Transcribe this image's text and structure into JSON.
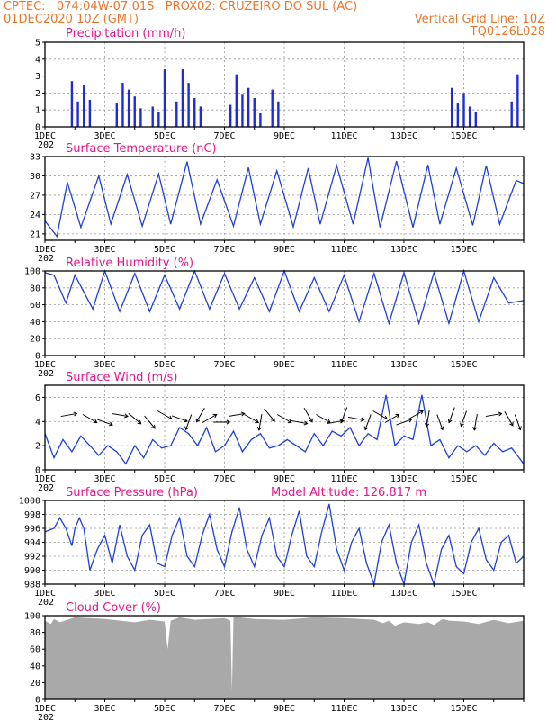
{
  "header": {
    "left_line1": "CPTEC:   074:04W-07:01S   PROX02: CRUZEIRO DO SUL (AC)",
    "left_line2": "01DEC2020 10Z (GMT)",
    "right_line2": "Vertical Grid Line: 10Z",
    "right_line3": "TQ0126L028"
  },
  "colors": {
    "header": "#e8762b",
    "title": "#e0188c",
    "line": "#1f3fd6",
    "bar": "#1f2ad8",
    "cloud": "#a9a9a9"
  },
  "chart_data": [
    {
      "id": "precip",
      "type": "bar",
      "title": "Precipitation (mm/h)",
      "ylim": [
        0,
        5
      ],
      "yticks": [
        0,
        1,
        2,
        3,
        4,
        5
      ],
      "grid": true,
      "x": [
        0.9,
        1.1,
        1.3,
        1.5,
        2.4,
        2.6,
        2.8,
        3.0,
        3.2,
        3.6,
        3.8,
        4.0,
        4.4,
        4.6,
        4.8,
        5.0,
        5.2,
        6.2,
        6.4,
        6.6,
        6.8,
        7.0,
        7.2,
        7.6,
        7.8,
        13.6,
        13.8,
        14.0,
        14.2,
        14.4,
        15.6,
        15.8
      ],
      "values": [
        2.7,
        1.5,
        2.5,
        1.6,
        1.4,
        2.6,
        2.2,
        1.8,
        1.1,
        1.2,
        0.9,
        3.4,
        1.5,
        3.4,
        2.6,
        1.7,
        1.2,
        1.3,
        3.1,
        1.9,
        2.3,
        1.7,
        0.8,
        2.2,
        1.5,
        2.3,
        1.4,
        2.0,
        1.2,
        0.9,
        1.5,
        3.1
      ]
    },
    {
      "id": "temperature",
      "type": "line",
      "title": "Surface Temperature (nC)",
      "ylim": [
        20,
        33
      ],
      "yticks": [
        21,
        24,
        27,
        30,
        33
      ],
      "grid": true,
      "x": [
        0,
        0.4,
        0.75,
        1.2,
        1.8,
        2.2,
        2.75,
        3.25,
        3.8,
        4.2,
        4.75,
        5.2,
        5.75,
        6.3,
        6.8,
        7.2,
        7.75,
        8.3,
        8.8,
        9.2,
        9.75,
        10.3,
        10.8,
        11.2,
        11.75,
        12.3,
        12.8,
        13.2,
        13.75,
        14.3,
        14.75,
        15.2,
        15.75,
        16
      ],
      "values": [
        23,
        20.6,
        29,
        22,
        30,
        22.5,
        30.2,
        22.2,
        30.3,
        22.5,
        32.2,
        22.5,
        29.4,
        22.2,
        31.3,
        22.5,
        30.8,
        22.1,
        31.2,
        22.5,
        31.6,
        22.5,
        32.8,
        22,
        32.3,
        22,
        31.7,
        22.5,
        31.2,
        22.3,
        31.6,
        22.5,
        29.3,
        28.8
      ]
    },
    {
      "id": "humidity",
      "type": "line",
      "title": "Relative Humidity (%)",
      "ylim": [
        0,
        100
      ],
      "yticks": [
        0,
        20,
        40,
        60,
        80,
        100
      ],
      "grid": true,
      "x": [
        0,
        0.3,
        0.7,
        1.0,
        1.6,
        2.0,
        2.5,
        3.0,
        3.5,
        4.0,
        4.5,
        5.0,
        5.5,
        6.0,
        6.5,
        7.0,
        7.5,
        8.0,
        8.5,
        9.0,
        9.5,
        10.0,
        10.5,
        11.0,
        11.5,
        12.0,
        12.5,
        13.0,
        13.5,
        14.0,
        14.5,
        15.0,
        15.5,
        16
      ],
      "values": [
        98,
        95,
        62,
        95,
        55,
        100,
        52,
        97,
        52,
        95,
        55,
        100,
        55,
        97,
        55,
        92,
        52,
        100,
        52,
        92,
        52,
        95,
        40,
        97,
        38,
        98,
        38,
        98,
        38,
        100,
        40,
        92,
        62,
        65
      ]
    },
    {
      "id": "wind",
      "type": "line",
      "title": "Surface Wind (m/s)",
      "ylim": [
        0,
        7
      ],
      "yticks": [
        0,
        2,
        4,
        6
      ],
      "grid": true,
      "x": [
        0,
        0.3,
        0.6,
        0.9,
        1.2,
        1.5,
        1.8,
        2.1,
        2.4,
        2.7,
        3.0,
        3.3,
        3.6,
        3.9,
        4.2,
        4.5,
        4.8,
        5.1,
        5.4,
        5.7,
        6.0,
        6.3,
        6.6,
        6.9,
        7.2,
        7.5,
        7.8,
        8.1,
        8.4,
        8.7,
        9.0,
        9.3,
        9.6,
        9.9,
        10.2,
        10.5,
        10.8,
        11.1,
        11.4,
        11.7,
        12.0,
        12.3,
        12.6,
        12.9,
        13.2,
        13.5,
        13.8,
        14.1,
        14.4,
        14.7,
        15.0,
        15.3,
        15.6,
        16
      ],
      "values": [
        3.0,
        1.0,
        2.5,
        1.5,
        2.8,
        2.0,
        1.2,
        2.0,
        1.5,
        0.5,
        2.0,
        1.0,
        2.5,
        1.8,
        2.0,
        3.5,
        3.0,
        2.0,
        3.5,
        1.5,
        2.0,
        3.2,
        1.5,
        2.5,
        3.0,
        1.8,
        2.0,
        2.5,
        2.0,
        1.5,
        3.0,
        2.0,
        3.2,
        2.8,
        3.5,
        2.0,
        3.0,
        2.5,
        6.2,
        2.0,
        2.8,
        2.5,
        6.2,
        2.0,
        2.5,
        1.0,
        2.0,
        1.5,
        2.0,
        1.2,
        2.2,
        1.5,
        1.8,
        0.5
      ],
      "arrows": [
        {
          "x": 0.8,
          "dir": 80
        },
        {
          "x": 1.5,
          "dir": 120
        },
        {
          "x": 2.0,
          "dir": 110
        },
        {
          "x": 2.5,
          "dir": 100
        },
        {
          "x": 3.0,
          "dir": 130
        },
        {
          "x": 3.5,
          "dir": 140
        },
        {
          "x": 4.0,
          "dir": 120
        },
        {
          "x": 4.5,
          "dir": 110
        },
        {
          "x": 4.8,
          "dir": 200
        },
        {
          "x": 5.2,
          "dir": 210
        },
        {
          "x": 5.5,
          "dir": 60
        },
        {
          "x": 5.9,
          "dir": 90
        },
        {
          "x": 6.4,
          "dir": 80
        },
        {
          "x": 6.9,
          "dir": 120
        },
        {
          "x": 7.2,
          "dir": 190
        },
        {
          "x": 7.5,
          "dir": 140
        },
        {
          "x": 8.0,
          "dir": 120
        },
        {
          "x": 8.5,
          "dir": 100
        },
        {
          "x": 8.8,
          "dir": 150
        },
        {
          "x": 9.3,
          "dir": 120
        },
        {
          "x": 9.7,
          "dir": 80
        },
        {
          "x": 10.0,
          "dir": 200
        },
        {
          "x": 10.4,
          "dir": 100
        },
        {
          "x": 10.8,
          "dir": 200
        },
        {
          "x": 11.2,
          "dir": 120
        },
        {
          "x": 11.6,
          "dir": 60
        },
        {
          "x": 12.0,
          "dir": 70
        },
        {
          "x": 12.4,
          "dir": 60
        },
        {
          "x": 12.8,
          "dir": 190
        },
        {
          "x": 13.2,
          "dir": 160
        },
        {
          "x": 13.6,
          "dir": 200
        },
        {
          "x": 14.0,
          "dir": 200
        },
        {
          "x": 14.4,
          "dir": 190
        },
        {
          "x": 15.0,
          "dir": 80
        },
        {
          "x": 15.5,
          "dir": 150
        },
        {
          "x": 15.8,
          "dir": 160
        }
      ]
    },
    {
      "id": "pressure",
      "type": "line",
      "title": "Surface Pressure (hPa)",
      "extra_label": "Model Altitude: 126.817  m",
      "ylim": [
        988,
        1000
      ],
      "yticks": [
        988,
        990,
        992,
        994,
        996,
        998,
        1000
      ],
      "grid": true,
      "x": [
        0,
        0.3,
        0.5,
        0.7,
        0.9,
        1.0,
        1.15,
        1.3,
        1.5,
        1.75,
        2.0,
        2.25,
        2.5,
        2.75,
        3.0,
        3.25,
        3.5,
        3.75,
        4.0,
        4.25,
        4.5,
        4.75,
        5.0,
        5.25,
        5.5,
        5.75,
        6.0,
        6.25,
        6.5,
        6.75,
        7.0,
        7.25,
        7.5,
        7.75,
        8.0,
        8.25,
        8.5,
        8.75,
        9.0,
        9.25,
        9.5,
        9.75,
        10.0,
        10.25,
        10.5,
        10.75,
        11.0,
        11.25,
        11.5,
        11.75,
        12.0,
        12.25,
        12.5,
        12.75,
        13.0,
        13.25,
        13.5,
        13.75,
        14.0,
        14.25,
        14.5,
        14.75,
        15.0,
        15.25,
        15.5,
        15.75,
        16
      ],
      "values": [
        995.5,
        996,
        997.5,
        996,
        993.5,
        996,
        997.5,
        996,
        990,
        993,
        995,
        991,
        996.5,
        992,
        990,
        995,
        996.5,
        991,
        990.5,
        995,
        997.5,
        992,
        990.5,
        995,
        998,
        993,
        990.5,
        995.5,
        999,
        993,
        990.5,
        995,
        997.5,
        992,
        990.5,
        995,
        998.5,
        992,
        990.5,
        995.5,
        999.5,
        993,
        990,
        994,
        996,
        991,
        988,
        994,
        996.5,
        991,
        988,
        994,
        996.5,
        991,
        988,
        993,
        995,
        990.5,
        989.5,
        994,
        996,
        991.5,
        990,
        994,
        995,
        991,
        992
      ]
    },
    {
      "id": "cloud",
      "type": "area",
      "title": "Cloud Cover (%)",
      "ylim": [
        0,
        100
      ],
      "yticks": [
        0,
        20,
        40,
        60,
        80,
        100
      ],
      "grid": false,
      "x": [
        0,
        0.2,
        0.3,
        0.5,
        1.0,
        2.0,
        3.0,
        3.5,
        4.0,
        4.1,
        4.2,
        4.5,
        5.0,
        6.0,
        6.2,
        6.25,
        6.3,
        6.5,
        7.0,
        8.0,
        9.0,
        10.0,
        11.0,
        11.3,
        11.5,
        11.7,
        12.0,
        12.5,
        12.8,
        13.0,
        13.3,
        13.5,
        14.0,
        14.5,
        15.0,
        15.5,
        16
      ],
      "values": [
        94,
        90,
        96,
        92,
        98,
        96,
        92,
        95,
        93,
        60,
        94,
        98,
        95,
        97,
        94,
        10,
        99,
        98,
        96,
        95,
        98,
        97,
        95,
        91,
        94,
        88,
        92,
        90,
        92,
        89,
        96,
        94,
        93,
        90,
        95,
        91,
        94
      ]
    }
  ],
  "x_axis": {
    "labels": [
      "1DEC",
      "3DEC",
      "5DEC",
      "7DEC",
      "9DEC",
      "11DEC",
      "13DEC",
      "15DEC"
    ],
    "label_days": [
      0,
      2,
      4,
      6,
      8,
      10,
      12,
      14
    ],
    "year_stub": "202"
  }
}
